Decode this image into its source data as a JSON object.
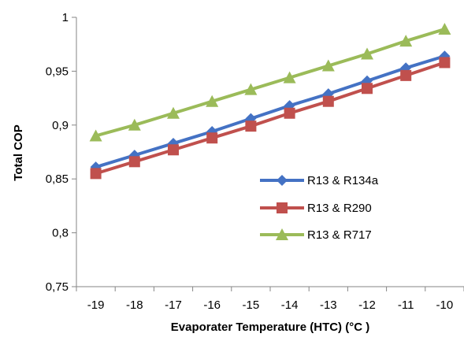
{
  "chart_data": {
    "type": "line",
    "title": "",
    "xlabel": "Evaporater Temperature  (HTC) (°C )",
    "ylabel": "Total  COP",
    "x": [
      -19,
      -18,
      -17,
      -16,
      -15,
      -14,
      -13,
      -12,
      -11,
      -10
    ],
    "x_tick_labels": [
      "-19",
      "-18",
      "-17",
      "-16",
      "-15",
      "-14",
      "-13",
      "-12",
      "-11",
      "-10"
    ],
    "ylim": [
      0.75,
      1.0
    ],
    "y_ticks": [
      0.75,
      0.8,
      0.85,
      0.9,
      0.95,
      1.0
    ],
    "y_tick_labels": [
      "0,75",
      "0,8",
      "0,85",
      "0,9",
      "0,95",
      "1"
    ],
    "grid": false,
    "legend_position": "center-right",
    "series": [
      {
        "name": "R13 & R134a",
        "color": "#4472C4",
        "marker": "diamond",
        "values": [
          0.861,
          0.872,
          0.883,
          0.894,
          0.906,
          0.918,
          0.929,
          0.941,
          0.953,
          0.964
        ]
      },
      {
        "name": "R13 & R290",
        "color": "#C0504D",
        "marker": "square",
        "values": [
          0.855,
          0.866,
          0.877,
          0.888,
          0.899,
          0.911,
          0.922,
          0.934,
          0.946,
          0.958
        ]
      },
      {
        "name": "R13 & R717",
        "color": "#9BBB59",
        "marker": "triangle",
        "values": [
          0.89,
          0.9,
          0.911,
          0.922,
          0.933,
          0.944,
          0.955,
          0.966,
          0.978,
          0.989
        ]
      }
    ]
  }
}
